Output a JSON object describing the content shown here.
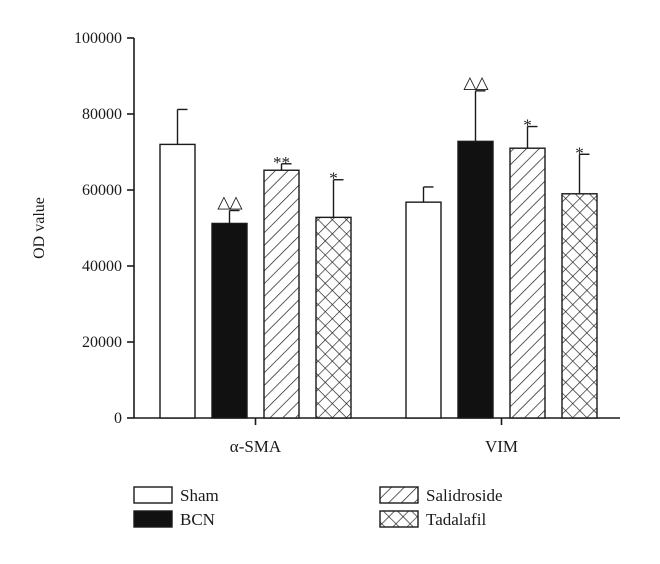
{
  "chart_data": {
    "type": "bar",
    "ylabel": "OD value",
    "ylim": [
      0,
      100000
    ],
    "yticks": [
      0,
      20000,
      40000,
      60000,
      80000,
      100000
    ],
    "ytick_labels": [
      "0",
      "20000",
      "40000",
      "60000",
      "80000",
      "100000"
    ],
    "categories": [
      "α-SMA",
      "VIM"
    ],
    "series": [
      {
        "name": "Sham",
        "pattern": "white",
        "values": [
          72000,
          56800
        ],
        "errors": [
          9200,
          4000
        ],
        "marks": [
          "",
          ""
        ]
      },
      {
        "name": "BCN",
        "pattern": "black",
        "values": [
          51200,
          72800
        ],
        "errors": [
          3400,
          13300
        ],
        "marks": [
          "△△",
          "△△"
        ]
      },
      {
        "name": "Salidroside",
        "pattern": "diagonal",
        "values": [
          65200,
          71000
        ],
        "errors": [
          1700,
          5700
        ],
        "marks": [
          "**",
          "*"
        ]
      },
      {
        "name": "Tadalafil",
        "pattern": "crosshatch",
        "values": [
          52800,
          59000
        ],
        "errors": [
          9900,
          10400
        ],
        "marks": [
          "*",
          "*"
        ]
      }
    ],
    "legend_layout": "two columns below chart",
    "colors": {
      "ink": "#1a1a1a",
      "white_fill": "#ffffff",
      "black_fill": "#111111"
    }
  }
}
